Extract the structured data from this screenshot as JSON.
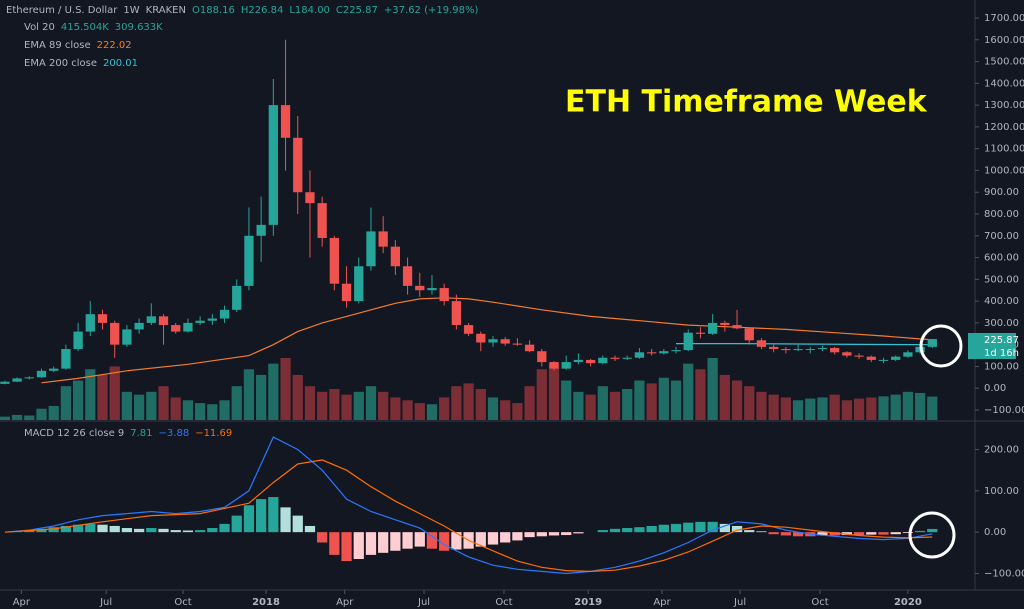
{
  "header": {
    "title": "Ethereum / U.S. Dollar",
    "interval": "1W",
    "exchange": "KRAKEN",
    "ohlc": [
      "O188.16",
      "H226.84",
      "L184.00",
      "C225.87",
      "+37.62 (+19.98%)"
    ]
  },
  "chart_data": {
    "type": "candlestick",
    "annotation": "ETH Timeframe Week",
    "price_label": "225.87",
    "countdown": "1d 16h",
    "x": [
      0,
      2,
      4,
      6,
      8,
      10,
      12,
      14,
      16,
      18,
      20,
      22,
      24,
      26,
      28,
      30,
      32,
      34,
      36,
      38,
      40,
      42,
      44,
      46,
      48,
      50,
      52,
      54,
      56,
      58,
      60,
      62,
      64,
      66,
      68,
      70,
      72,
      74,
      76,
      78,
      80,
      82,
      84,
      86,
      88,
      90,
      92,
      94,
      96,
      98,
      100,
      102,
      104,
      106,
      108,
      110,
      112,
      114,
      116,
      118,
      120,
      122,
      124,
      126,
      128,
      130,
      132,
      134,
      136,
      138,
      140,
      142,
      144,
      146,
      148,
      150,
      152
    ],
    "candles": [
      [
        20,
        35,
        18,
        30
      ],
      [
        30,
        50,
        28,
        45
      ],
      [
        45,
        55,
        40,
        50
      ],
      [
        50,
        90,
        48,
        80
      ],
      [
        80,
        100,
        75,
        90
      ],
      [
        90,
        200,
        85,
        180
      ],
      [
        180,
        300,
        170,
        260
      ],
      [
        260,
        400,
        240,
        340
      ],
      [
        340,
        360,
        270,
        300
      ],
      [
        300,
        310,
        140,
        200
      ],
      [
        200,
        290,
        190,
        270
      ],
      [
        270,
        320,
        250,
        300
      ],
      [
        300,
        390,
        290,
        330
      ],
      [
        330,
        340,
        200,
        290
      ],
      [
        290,
        300,
        250,
        260
      ],
      [
        260,
        320,
        255,
        300
      ],
      [
        300,
        330,
        290,
        310
      ],
      [
        310,
        340,
        290,
        320
      ],
      [
        320,
        380,
        300,
        360
      ],
      [
        360,
        500,
        350,
        470
      ],
      [
        470,
        830,
        450,
        700
      ],
      [
        700,
        880,
        580,
        750
      ],
      [
        750,
        1420,
        700,
        1300
      ],
      [
        1300,
        1600,
        1000,
        1150
      ],
      [
        1150,
        1250,
        800,
        900
      ],
      [
        900,
        1000,
        600,
        850
      ],
      [
        850,
        880,
        650,
        690
      ],
      [
        690,
        700,
        450,
        480
      ],
      [
        480,
        560,
        370,
        400
      ],
      [
        400,
        600,
        390,
        560
      ],
      [
        560,
        830,
        540,
        720
      ],
      [
        720,
        790,
        620,
        650
      ],
      [
        650,
        680,
        520,
        560
      ],
      [
        560,
        600,
        430,
        470
      ],
      [
        470,
        530,
        420,
        450
      ],
      [
        450,
        520,
        430,
        460
      ],
      [
        460,
        480,
        380,
        400
      ],
      [
        400,
        430,
        270,
        290
      ],
      [
        290,
        300,
        240,
        250
      ],
      [
        250,
        260,
        170,
        210
      ],
      [
        210,
        240,
        190,
        225
      ],
      [
        225,
        235,
        195,
        205
      ],
      [
        205,
        230,
        195,
        200
      ],
      [
        200,
        220,
        165,
        170
      ],
      [
        170,
        180,
        100,
        120
      ],
      [
        120,
        125,
        82,
        90
      ],
      [
        90,
        150,
        85,
        120
      ],
      [
        120,
        160,
        110,
        130
      ],
      [
        130,
        135,
        100,
        115
      ],
      [
        115,
        150,
        110,
        140
      ],
      [
        140,
        150,
        125,
        135
      ],
      [
        135,
        150,
        130,
        140
      ],
      [
        140,
        185,
        135,
        165
      ],
      [
        165,
        180,
        150,
        160
      ],
      [
        160,
        180,
        155,
        170
      ],
      [
        170,
        190,
        160,
        175
      ],
      [
        175,
        270,
        170,
        255
      ],
      [
        255,
        280,
        230,
        250
      ],
      [
        250,
        340,
        245,
        300
      ],
      [
        300,
        310,
        260,
        290
      ],
      [
        290,
        360,
        270,
        275
      ],
      [
        275,
        280,
        200,
        220
      ],
      [
        220,
        230,
        180,
        190
      ],
      [
        190,
        200,
        165,
        180
      ],
      [
        180,
        190,
        160,
        175
      ],
      [
        175,
        200,
        170,
        180
      ],
      [
        180,
        190,
        160,
        180
      ],
      [
        180,
        195,
        170,
        185
      ],
      [
        185,
        190,
        155,
        165
      ],
      [
        165,
        170,
        140,
        150
      ],
      [
        150,
        160,
        135,
        145
      ],
      [
        145,
        150,
        120,
        130
      ],
      [
        130,
        140,
        115,
        130
      ],
      [
        130,
        150,
        125,
        145
      ],
      [
        145,
        175,
        140,
        165
      ],
      [
        165,
        195,
        160,
        190
      ],
      [
        190,
        226.84,
        184,
        225.87
      ]
    ],
    "volume": {
      "name": "Vol 20",
      "labels": [
        "415.504K",
        "309.633K"
      ],
      "values": [
        60,
        90,
        80,
        200,
        250,
        600,
        700,
        900,
        800,
        950,
        500,
        450,
        500,
        600,
        400,
        350,
        300,
        280,
        350,
        600,
        900,
        800,
        1000,
        1100,
        800,
        600,
        500,
        550,
        450,
        500,
        600,
        500,
        400,
        350,
        300,
        280,
        400,
        600,
        650,
        550,
        400,
        350,
        300,
        600,
        900,
        1000,
        700,
        500,
        450,
        600,
        500,
        550,
        700,
        650,
        750,
        700,
        1000,
        900,
        1100,
        800,
        700,
        600,
        500,
        450,
        400,
        350,
        380,
        400,
        450,
        350,
        380,
        400,
        420,
        450,
        500,
        480,
        415.504
      ]
    },
    "series": [
      {
        "name": "EMA 89 close",
        "color": "#f57c2a",
        "x": [
          6,
          12,
          20,
          30,
          40,
          44,
          48,
          52,
          56,
          60,
          64,
          68,
          72,
          76,
          80,
          88,
          96,
          104,
          112,
          120,
          128,
          136,
          144,
          152
        ],
        "values": [
          25,
          45,
          80,
          110,
          150,
          200,
          260,
          300,
          330,
          360,
          390,
          410,
          415,
          410,
          395,
          360,
          330,
          310,
          290,
          280,
          270,
          255,
          240,
          222.02
        ]
      },
      {
        "name": "EMA 200 close",
        "color": "#2ec4d6",
        "x": [
          110,
          120,
          130,
          140,
          152
        ],
        "values": [
          205,
          205,
          203,
          201,
          200.01
        ]
      }
    ],
    "ylim": [
      -100,
      1700
    ],
    "yticks": [
      {
        "value": 1700,
        "label": "1700.00"
      },
      {
        "value": 1600,
        "label": "1600.00"
      },
      {
        "value": 1500,
        "label": "1500.00"
      },
      {
        "value": 1400,
        "label": "1400.00"
      },
      {
        "value": 1300,
        "label": "1300.00"
      },
      {
        "value": 1200,
        "label": "1200.00"
      },
      {
        "value": 1100,
        "label": "1100.00"
      },
      {
        "value": 1000,
        "label": "1000.00"
      },
      {
        "value": 900,
        "label": "900.00"
      },
      {
        "value": 800,
        "label": "800.00"
      },
      {
        "value": 700,
        "label": "700.00"
      },
      {
        "value": 600,
        "label": "600.00"
      },
      {
        "value": 500,
        "label": "500.00"
      },
      {
        "value": 400,
        "label": "400.00"
      },
      {
        "value": 300,
        "label": "300.00"
      },
      {
        "value": 200,
        "label": "200.00"
      },
      {
        "value": 100,
        "label": "100.00"
      },
      {
        "value": 0,
        "label": "0.00"
      },
      {
        "value": -100,
        "label": "−100.00"
      }
    ],
    "xlim": [
      -0.8,
      159
    ],
    "xticks": [
      {
        "value": 2.7,
        "label": "Apr"
      },
      {
        "value": 16.6,
        "label": "Jul"
      },
      {
        "value": 29.2,
        "label": "Oct"
      },
      {
        "value": 42.8,
        "label": "2018"
      },
      {
        "value": 55.7,
        "label": "Apr"
      },
      {
        "value": 68.7,
        "label": "Jul"
      },
      {
        "value": 81.8,
        "label": "Oct"
      },
      {
        "value": 95.6,
        "label": "2019"
      },
      {
        "value": 107.7,
        "label": "Apr"
      },
      {
        "value": 120.5,
        "label": "Jul"
      },
      {
        "value": 133.6,
        "label": "Oct"
      },
      {
        "value": 148,
        "label": "2020"
      }
    ],
    "macd": {
      "name": "MACD 12 26 close 9",
      "labels": [
        "7.81",
        "−3.88",
        "−11.69"
      ],
      "histogram": [
        0,
        2,
        5,
        8,
        12,
        15,
        18,
        20,
        18,
        15,
        10,
        8,
        10,
        8,
        5,
        4,
        5,
        10,
        20,
        40,
        65,
        80,
        85,
        60,
        40,
        15,
        -25,
        -55,
        -70,
        -65,
        -55,
        -50,
        -45,
        -40,
        -35,
        -40,
        -45,
        -42,
        -40,
        -35,
        -30,
        -25,
        -20,
        -12,
        -10,
        -8,
        -7,
        -3,
        0,
        5,
        8,
        10,
        12,
        15,
        18,
        20,
        23,
        25,
        25,
        20,
        15,
        5,
        2,
        -5,
        -8,
        -10,
        -10,
        -8,
        -8,
        -7,
        -7,
        -6,
        -6,
        -5,
        -2,
        3,
        7.81
      ],
      "series": [
        {
          "name": "MACD",
          "color": "#2979ff",
          "x": [
            0,
            4,
            8,
            12,
            16,
            20,
            24,
            28,
            32,
            36,
            40,
            44,
            48,
            52,
            56,
            60,
            64,
            68,
            72,
            76,
            80,
            84,
            88,
            92,
            96,
            100,
            104,
            108,
            112,
            116,
            120,
            124,
            128,
            132,
            136,
            140,
            144,
            148,
            152
          ],
          "values": [
            0,
            5,
            15,
            30,
            40,
            45,
            50,
            45,
            50,
            60,
            100,
            230,
            200,
            150,
            80,
            50,
            30,
            10,
            -30,
            -60,
            -80,
            -90,
            -95,
            -100,
            -95,
            -85,
            -70,
            -50,
            -25,
            5,
            25,
            20,
            5,
            -5,
            -10,
            -15,
            -18,
            -15,
            -3.88
          ]
        },
        {
          "name": "Signal",
          "color": "#ff6d00",
          "x": [
            0,
            8,
            16,
            24,
            32,
            40,
            44,
            48,
            52,
            56,
            60,
            64,
            68,
            72,
            76,
            80,
            84,
            88,
            92,
            96,
            100,
            104,
            108,
            112,
            116,
            120,
            124,
            128,
            132,
            136,
            140,
            144,
            148,
            152
          ],
          "values": [
            0,
            8,
            25,
            40,
            45,
            70,
            120,
            165,
            175,
            150,
            110,
            75,
            45,
            15,
            -20,
            -45,
            -70,
            -85,
            -93,
            -95,
            -92,
            -82,
            -68,
            -48,
            -22,
            5,
            15,
            12,
            5,
            -2,
            -8,
            -12,
            -14,
            -11.69
          ]
        }
      ],
      "ylim": [
        -140,
        240
      ],
      "yticks": [
        {
          "value": 200,
          "label": "200.00"
        },
        {
          "value": 100,
          "label": "100.00"
        },
        {
          "value": 0,
          "label": "0.00"
        },
        {
          "value": -100,
          "label": "−100.00"
        }
      ]
    }
  }
}
